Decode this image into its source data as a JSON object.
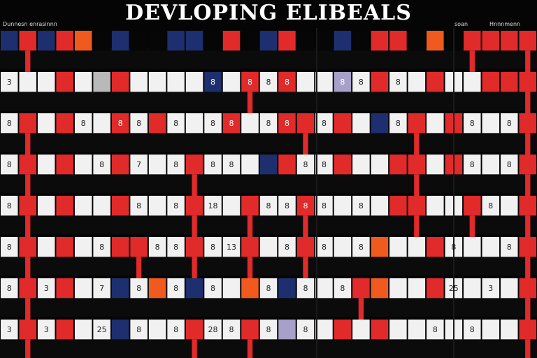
{
  "title": "DEVLOPING ELIBEALS",
  "corner_labels": {
    "left": "Dunnesn enrasinnn",
    "right_a": "soan",
    "right_b": "Hnnnmenn"
  },
  "palette": {
    "red": "#e12a2a",
    "white": "#f1f1f1",
    "black": "#060606",
    "navy": "#1d2f6e",
    "orange": "#f05a1e",
    "gray": "#b9b9b9",
    "lavender": "#a7a0c8"
  },
  "board": {
    "rows": [
      [
        {
          "c": "navy"
        },
        {
          "c": "red"
        },
        {
          "c": "navy"
        },
        {
          "c": "red"
        },
        {
          "c": "orange"
        },
        {
          "c": "black"
        },
        {
          "c": "navy"
        },
        {
          "c": "black"
        },
        {
          "c": "black"
        },
        {
          "c": "navy"
        },
        {
          "c": "navy"
        },
        {
          "c": "black"
        },
        {
          "c": "red"
        },
        {
          "c": "black"
        },
        {
          "c": "navy"
        },
        {
          "c": "red"
        },
        {
          "c": "black"
        },
        {
          "c": "black"
        },
        {
          "c": "navy"
        },
        {
          "c": "black"
        },
        {
          "c": "red"
        },
        {
          "c": "red"
        },
        {
          "c": "black"
        },
        {
          "c": "orange"
        },
        {
          "c": "black"
        },
        {
          "c": "red"
        },
        {
          "c": "red"
        },
        {
          "c": "red"
        },
        {
          "c": "red"
        }
      ],
      [
        {
          "c": "white",
          "t": "3"
        },
        {
          "c": "white"
        },
        {
          "c": "white"
        },
        {
          "c": "red"
        },
        {
          "c": "white"
        },
        {
          "c": "gray"
        },
        {
          "c": "red"
        },
        {
          "c": "white"
        },
        {
          "c": "white"
        },
        {
          "c": "white"
        },
        {
          "c": "white"
        },
        {
          "c": "navy",
          "t": "8"
        },
        {
          "c": "white"
        },
        {
          "c": "red",
          "t": "8"
        },
        {
          "c": "white",
          "t": "8"
        },
        {
          "c": "red",
          "t": "8"
        },
        {
          "c": "white"
        },
        {
          "c": "white"
        },
        {
          "c": "lavender",
          "t": "8"
        },
        {
          "c": "white",
          "t": "8"
        },
        {
          "c": "red"
        },
        {
          "c": "white",
          "t": "8"
        },
        {
          "c": "white"
        },
        {
          "c": "red"
        },
        {
          "c": "white"
        },
        {
          "c": "white"
        },
        {
          "c": "red"
        },
        {
          "c": "red"
        },
        {
          "c": "red"
        }
      ],
      [
        {
          "c": "white",
          "t": "8"
        },
        {
          "c": "red"
        },
        {
          "c": "white"
        },
        {
          "c": "red"
        },
        {
          "c": "white",
          "t": "8"
        },
        {
          "c": "white"
        },
        {
          "c": "red",
          "t": "8"
        },
        {
          "c": "white",
          "t": "8"
        },
        {
          "c": "red"
        },
        {
          "c": "white",
          "t": "8"
        },
        {
          "c": "white"
        },
        {
          "c": "white",
          "t": "8"
        },
        {
          "c": "red",
          "t": "8"
        },
        {
          "c": "white"
        },
        {
          "c": "white",
          "t": "8"
        },
        {
          "c": "red",
          "t": "8"
        },
        {
          "c": "red"
        },
        {
          "c": "white",
          "t": "8"
        },
        {
          "c": "red"
        },
        {
          "c": "white"
        },
        {
          "c": "navy"
        },
        {
          "c": "white",
          "t": "8"
        },
        {
          "c": "red"
        },
        {
          "c": "white"
        },
        {
          "c": "red"
        },
        {
          "c": "white",
          "t": "8"
        },
        {
          "c": "white"
        },
        {
          "c": "white",
          "t": "8"
        },
        {
          "c": "red"
        }
      ],
      [
        {
          "c": "white",
          "t": "8"
        },
        {
          "c": "red"
        },
        {
          "c": "white"
        },
        {
          "c": "red"
        },
        {
          "c": "white"
        },
        {
          "c": "white",
          "t": "8"
        },
        {
          "c": "red"
        },
        {
          "c": "white",
          "t": "7"
        },
        {
          "c": "white"
        },
        {
          "c": "white",
          "t": "8"
        },
        {
          "c": "red"
        },
        {
          "c": "white",
          "t": "8"
        },
        {
          "c": "white",
          "t": "8"
        },
        {
          "c": "white"
        },
        {
          "c": "navy"
        },
        {
          "c": "red"
        },
        {
          "c": "white",
          "t": "8"
        },
        {
          "c": "white",
          "t": "8"
        },
        {
          "c": "red"
        },
        {
          "c": "white"
        },
        {
          "c": "white"
        },
        {
          "c": "red"
        },
        {
          "c": "red"
        },
        {
          "c": "white"
        },
        {
          "c": "red"
        },
        {
          "c": "white",
          "t": "8"
        },
        {
          "c": "white"
        },
        {
          "c": "white",
          "t": "8"
        },
        {
          "c": "red"
        }
      ],
      [
        {
          "c": "white",
          "t": "8"
        },
        {
          "c": "red"
        },
        {
          "c": "white"
        },
        {
          "c": "red"
        },
        {
          "c": "white"
        },
        {
          "c": "white"
        },
        {
          "c": "red"
        },
        {
          "c": "white",
          "t": "8"
        },
        {
          "c": "white"
        },
        {
          "c": "white",
          "t": "8"
        },
        {
          "c": "red"
        },
        {
          "c": "white",
          "t": "18"
        },
        {
          "c": "white"
        },
        {
          "c": "red"
        },
        {
          "c": "white",
          "t": "8"
        },
        {
          "c": "white",
          "t": "8"
        },
        {
          "c": "red",
          "t": "8"
        },
        {
          "c": "white",
          "t": "8"
        },
        {
          "c": "white"
        },
        {
          "c": "white",
          "t": "8"
        },
        {
          "c": "white"
        },
        {
          "c": "red"
        },
        {
          "c": "red"
        },
        {
          "c": "white"
        },
        {
          "c": "white"
        },
        {
          "c": "red"
        },
        {
          "c": "white",
          "t": "8"
        },
        {
          "c": "white"
        },
        {
          "c": "red"
        }
      ],
      [
        {
          "c": "white",
          "t": "8"
        },
        {
          "c": "red"
        },
        {
          "c": "white"
        },
        {
          "c": "red"
        },
        {
          "c": "white"
        },
        {
          "c": "white",
          "t": "8"
        },
        {
          "c": "red"
        },
        {
          "c": "red"
        },
        {
          "c": "white",
          "t": "8"
        },
        {
          "c": "white",
          "t": "8"
        },
        {
          "c": "red"
        },
        {
          "c": "white",
          "t": "8"
        },
        {
          "c": "white",
          "t": "13"
        },
        {
          "c": "red"
        },
        {
          "c": "white"
        },
        {
          "c": "white",
          "t": "8"
        },
        {
          "c": "red"
        },
        {
          "c": "white",
          "t": "8"
        },
        {
          "c": "white"
        },
        {
          "c": "white",
          "t": "8"
        },
        {
          "c": "orange"
        },
        {
          "c": "white"
        },
        {
          "c": "white"
        },
        {
          "c": "red"
        },
        {
          "c": "white",
          "t": "8"
        },
        {
          "c": "white"
        },
        {
          "c": "white"
        },
        {
          "c": "white",
          "t": "8"
        },
        {
          "c": "red"
        }
      ],
      [
        {
          "c": "white",
          "t": "8"
        },
        {
          "c": "red"
        },
        {
          "c": "white",
          "t": "3"
        },
        {
          "c": "red"
        },
        {
          "c": "white"
        },
        {
          "c": "white",
          "t": "7"
        },
        {
          "c": "navy"
        },
        {
          "c": "white",
          "t": "8"
        },
        {
          "c": "orange"
        },
        {
          "c": "white",
          "t": "8"
        },
        {
          "c": "navy"
        },
        {
          "c": "white",
          "t": "8"
        },
        {
          "c": "white"
        },
        {
          "c": "orange"
        },
        {
          "c": "white",
          "t": "8"
        },
        {
          "c": "navy"
        },
        {
          "c": "white",
          "t": "8"
        },
        {
          "c": "white"
        },
        {
          "c": "white",
          "t": "8"
        },
        {
          "c": "red"
        },
        {
          "c": "orange"
        },
        {
          "c": "white"
        },
        {
          "c": "white"
        },
        {
          "c": "red"
        },
        {
          "c": "white",
          "t": "25"
        },
        {
          "c": "white"
        },
        {
          "c": "white",
          "t": "3"
        },
        {
          "c": "white"
        },
        {
          "c": "red"
        }
      ],
      [
        {
          "c": "white",
          "t": "3"
        },
        {
          "c": "red"
        },
        {
          "c": "white",
          "t": "3"
        },
        {
          "c": "red"
        },
        {
          "c": "white"
        },
        {
          "c": "white",
          "t": "25"
        },
        {
          "c": "navy"
        },
        {
          "c": "white",
          "t": "8"
        },
        {
          "c": "white"
        },
        {
          "c": "white",
          "t": "8"
        },
        {
          "c": "red"
        },
        {
          "c": "white",
          "t": "28"
        },
        {
          "c": "white",
          "t": "8"
        },
        {
          "c": "red"
        },
        {
          "c": "white",
          "t": "8"
        },
        {
          "c": "lavender"
        },
        {
          "c": "white",
          "t": "8"
        },
        {
          "c": "white"
        },
        {
          "c": "red"
        },
        {
          "c": "white"
        },
        {
          "c": "red"
        },
        {
          "c": "white"
        },
        {
          "c": "white"
        },
        {
          "c": "white",
          "t": "8"
        },
        {
          "c": "white"
        },
        {
          "c": "white",
          "t": "8"
        },
        {
          "c": "white"
        },
        {
          "c": "white"
        },
        {
          "c": "red"
        }
      ]
    ]
  }
}
